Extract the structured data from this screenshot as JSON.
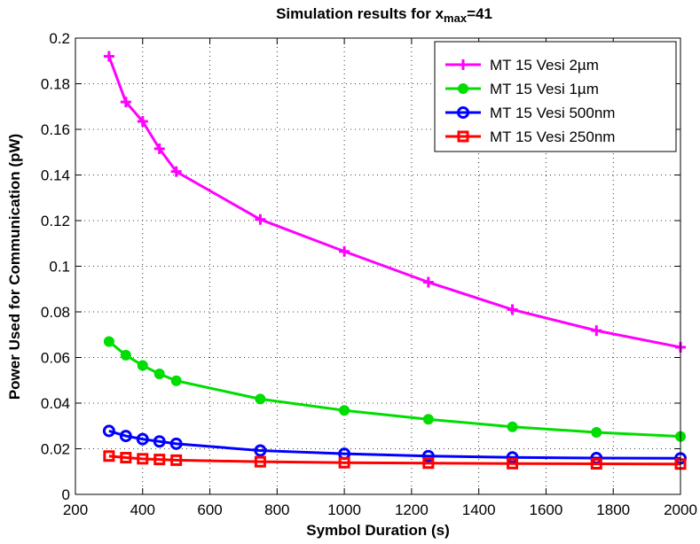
{
  "chart_data": {
    "type": "line",
    "title": {
      "prefix": "Simulation results for x",
      "subscript": "max",
      "suffix": "=41"
    },
    "xlabel": "Symbol Duration (s)",
    "ylabel": "Power Used for Communication (pW)",
    "xlim": [
      200,
      2000
    ],
    "ylim": [
      0,
      0.2
    ],
    "xticks": [
      200,
      400,
      600,
      800,
      1000,
      1200,
      1400,
      1600,
      1800,
      2000
    ],
    "yticks": [
      0,
      0.02,
      0.04,
      0.06,
      0.08,
      0.1,
      0.12,
      0.14,
      0.16,
      0.18,
      0.2
    ],
    "xtick_labels": [
      "200",
      "400",
      "600",
      "800",
      "1000",
      "1200",
      "1400",
      "1600",
      "1800",
      "2000"
    ],
    "ytick_labels": [
      "0",
      "0.02",
      "0.04",
      "0.06",
      "0.08",
      "0.1",
      "0.12",
      "0.14",
      "0.16",
      "0.18",
      "0.2"
    ],
    "grid": true,
    "legend_position": "top-right",
    "x": [
      300,
      350,
      400,
      450,
      500,
      750,
      1000,
      1250,
      1500,
      1750,
      2000
    ],
    "series": [
      {
        "name": "MT 15 Vesi 2µm",
        "color": "#ff00ff",
        "marker": "plus",
        "values": [
          0.192,
          0.172,
          0.1635,
          0.1515,
          0.1415,
          0.1205,
          0.1065,
          0.093,
          0.081,
          0.0718,
          0.0645
        ]
      },
      {
        "name": "MT 15 Vesi 1µm",
        "color": "#00dd00",
        "marker": "dot",
        "values": [
          0.067,
          0.061,
          0.0565,
          0.0528,
          0.0498,
          0.0418,
          0.0368,
          0.0329,
          0.0296,
          0.0272,
          0.0254
        ]
      },
      {
        "name": "MT 15 Vesi 500nm",
        "color": "#0000ff",
        "marker": "circle",
        "values": [
          0.0278,
          0.0256,
          0.0242,
          0.0232,
          0.0222,
          0.0192,
          0.0178,
          0.0168,
          0.0162,
          0.0159,
          0.0158
        ]
      },
      {
        "name": "MT 15 Vesi 250nm",
        "color": "#ff0000",
        "marker": "square",
        "values": [
          0.0168,
          0.0161,
          0.0156,
          0.0153,
          0.015,
          0.0143,
          0.0139,
          0.0137,
          0.0135,
          0.0134,
          0.0133
        ]
      }
    ]
  }
}
